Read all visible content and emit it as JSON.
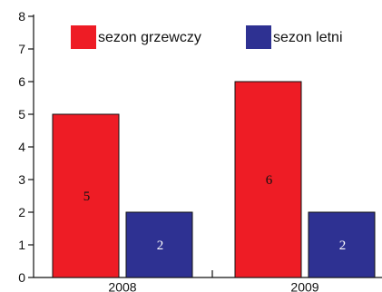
{
  "chart_data": {
    "type": "bar",
    "categories": [
      "2008",
      "2009"
    ],
    "series": [
      {
        "name": "sezon grzewczy",
        "values": [
          5,
          6
        ],
        "color": "#ee1c25",
        "label_color": "#111111"
      },
      {
        "name": "sezon letni",
        "values": [
          2,
          2
        ],
        "color": "#2e3192",
        "label_color": "#ffffff"
      }
    ],
    "ylim": [
      0,
      8
    ],
    "yticks": [
      "0",
      "1",
      "2",
      "3",
      "4",
      "5",
      "6",
      "7",
      "8"
    ],
    "title": "",
    "xlabel": "",
    "ylabel": "",
    "grid": false,
    "legend_position": "top"
  }
}
